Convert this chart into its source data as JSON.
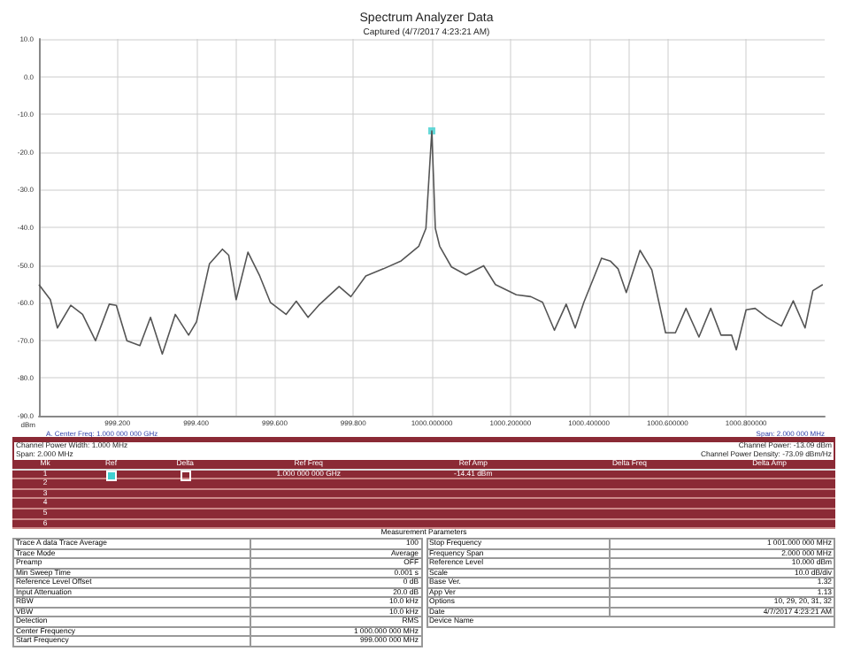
{
  "chart_data": {
    "type": "line",
    "title": "Spectrum Analyzer Data",
    "subtitle": "Captured (4/7/2017 4:23:21 AM)",
    "ylabel": "dBm",
    "xlim": [
      999,
      1001
    ],
    "ylim": [
      -90,
      10
    ],
    "xticks": [
      {
        "value": 999.2,
        "label": "999.200"
      },
      {
        "value": 999.4,
        "label": "999.400"
      },
      {
        "value": 999.5,
        "label": null
      },
      {
        "value": 999.6,
        "label": "999.600"
      },
      {
        "value": 999.8,
        "label": "999.800"
      },
      {
        "value": 1000,
        "label": "1000.000000"
      },
      {
        "value": 1000.2,
        "label": "1000.200000"
      },
      {
        "value": 1000.4,
        "label": "1000.400000"
      },
      {
        "value": 1000.5,
        "label": null
      },
      {
        "value": 1000.6,
        "label": "1000.600000"
      },
      {
        "value": 1000.8,
        "label": "1000.800000"
      }
    ],
    "yticks": [
      {
        "value": 10,
        "label": "10.0"
      },
      {
        "value": 0,
        "label": "0.0"
      },
      {
        "value": -10,
        "label": "-10.0"
      },
      {
        "value": -20,
        "label": "-20.0"
      },
      {
        "value": -30,
        "label": "-30.0"
      },
      {
        "value": -40,
        "label": "-40.0"
      },
      {
        "value": -50,
        "label": "-50.0"
      },
      {
        "value": -60,
        "label": "-60.0"
      },
      {
        "value": -70,
        "label": "-70.0"
      },
      {
        "value": -80,
        "label": "-80.0"
      },
      {
        "value": -90,
        "label": "-90.0"
      }
    ],
    "grid": true,
    "marker": "none",
    "line_style": "solid",
    "series": [
      {
        "color": "#555555",
        "x": [
          999.0,
          999.029,
          999.047,
          999.081,
          999.111,
          999.144,
          999.179,
          999.197,
          999.224,
          999.257,
          999.284,
          999.314,
          999.347,
          999.381,
          999.401,
          999.434,
          999.467,
          999.483,
          999.502,
          999.532,
          999.562,
          999.589,
          999.629,
          999.655,
          999.685,
          999.712,
          999.764,
          999.794,
          999.832,
          999.877,
          999.922,
          999.967,
          999.985,
          1000.0,
          1000.009,
          1000.02,
          1000.05,
          1000.087,
          1000.132,
          1000.162,
          1000.215,
          1000.252,
          1000.282,
          1000.312,
          1000.342,
          1000.365,
          1000.387,
          1000.432,
          1000.455,
          1000.474,
          1000.495,
          1000.53,
          1000.56,
          1000.595,
          1000.62,
          1000.647,
          1000.68,
          1000.71,
          1000.736,
          1000.763,
          1000.775,
          1000.8,
          1000.823,
          1000.853,
          1000.89,
          1000.92,
          1000.95,
          1000.97,
          1000.995
        ],
        "values": [
          -55.2,
          -59.2,
          -66.7,
          -60.7,
          -63.1,
          -70.1,
          -60.4,
          -60.7,
          -70.1,
          -71.4,
          -63.9,
          -73.6,
          -63.1,
          -68.6,
          -65.1,
          -49.7,
          -45.8,
          -47.4,
          -59.2,
          -46.6,
          -52.9,
          -59.9,
          -63.1,
          -59.6,
          -63.9,
          -60.7,
          -55.7,
          -58.4,
          -52.9,
          -51.0,
          -48.9,
          -45.0,
          -40.3,
          -14.4,
          -40.3,
          -45.0,
          -50.5,
          -52.6,
          -50.2,
          -55.2,
          -57.9,
          -58.4,
          -59.9,
          -67.3,
          -60.4,
          -66.7,
          -59.9,
          -48.2,
          -49.0,
          -51.0,
          -57.3,
          -46.1,
          -51.3,
          -68.0,
          -68.0,
          -61.5,
          -69.1,
          -61.5,
          -68.6,
          -68.6,
          -72.5,
          -61.9,
          -61.5,
          -63.9,
          -66.2,
          -59.5,
          -66.7,
          -56.8,
          -55.2
        ]
      },
      {
        "type": "scatter",
        "marker": "square",
        "color": "#40d0d0",
        "x": [
          1000.0
        ],
        "values": [
          -14.4
        ]
      }
    ],
    "annotations": [
      "A. Center Freq: 1.000 000 000 GHz",
      "Span: 2.000 000 MHz",
      "Channel Power Width: 1.000 MHz",
      "Span: 2.000 MHz",
      "Channel Power: -13.09 dBm",
      "Channel Power Density: -73.09 dBm/Hz",
      "Mk",
      "Ref",
      "Delta",
      "Ref Freq",
      "Ref Amp",
      "Delta Freq",
      "Delta Amp",
      "1",
      "1.000 000 000 GHz",
      "-14.41 dBm",
      "2",
      "3",
      "4",
      "5",
      "6",
      "Measurement Parameters",
      "Trace A data Trace Average",
      "100",
      "Trace Mode",
      "Average",
      "Preamp",
      "OFF",
      "Min Sweep Time",
      "0.001 s",
      "Reference Level Offset",
      "0 dB",
      "Input Attenuation",
      "20.0 dB",
      "RBW",
      "10.0 kHz",
      "VBW",
      "10.0 kHz",
      "Detection",
      "RMS",
      "Center Frequency",
      "1 000.000 000 MHz",
      "Start Frequency",
      "999.000 000 MHz",
      "Stop Frequency",
      "1 001.000 000 MHz",
      "Frequency Span",
      "2.000 000 MHz",
      "Reference Level",
      "10.000 dBm",
      "Scale",
      "10.0 dB/div",
      "Base Ver.",
      "1.32",
      "App Ver",
      "1.13",
      "Options",
      "10, 29, 20, 31, 32",
      "Date",
      "4/7/2017 4:23:21 AM",
      "Device Name"
    ]
  }
}
